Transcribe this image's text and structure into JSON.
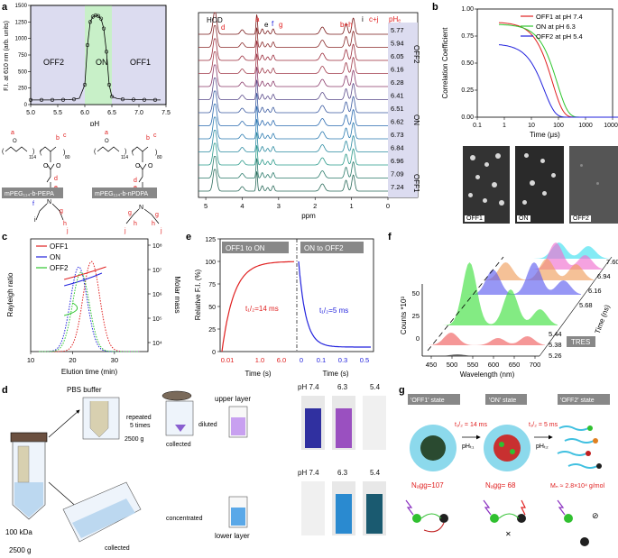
{
  "panels": {
    "a": "a",
    "b": "b",
    "c": "c",
    "d": "d",
    "e": "e",
    "f": "f",
    "g": "g"
  },
  "colors": {
    "red": "#e02020",
    "green": "#2ec62e",
    "blue": "#2222dd",
    "accentBg": "#dcdcf0",
    "onBand": "#c8f0c8"
  },
  "chart_data": [
    {
      "id": "a-fi",
      "type": "line",
      "xlabel": "pH",
      "ylabel": "F.I. at 610 nm (arb. units)",
      "xlim": [
        5.0,
        7.5
      ],
      "ylim": [
        0,
        1500
      ],
      "xticks": [
        "5.0",
        "5.5",
        "6.0",
        "6.5",
        "7.0",
        "7.5"
      ],
      "yticks": [
        "0",
        "250",
        "500",
        "750",
        "1000",
        "1250",
        "1500"
      ],
      "regions": [
        "OFF2",
        "ON",
        "OFF1"
      ],
      "x": [
        5.0,
        5.1,
        5.2,
        5.3,
        5.4,
        5.5,
        5.6,
        5.7,
        5.8,
        5.9,
        6.0,
        6.05,
        6.1,
        6.15,
        6.2,
        6.25,
        6.3,
        6.35,
        6.4,
        6.45,
        6.5,
        6.6,
        6.7,
        6.8,
        6.9,
        7.0,
        7.1,
        7.2,
        7.3,
        7.4
      ],
      "y": [
        70,
        70,
        70,
        70,
        70,
        72,
        72,
        75,
        80,
        95,
        300,
        900,
        1250,
        1330,
        1350,
        1340,
        1300,
        1150,
        800,
        300,
        120,
        90,
        80,
        78,
        75,
        75,
        72,
        72,
        70,
        70
      ]
    },
    {
      "id": "a-nmr",
      "type": "line",
      "xlabel": "ppm",
      "xticks": [
        "5",
        "4",
        "3",
        "2",
        "1",
        "0"
      ],
      "peak_labels": [
        "HOD",
        "d",
        "a",
        "e",
        "f",
        "g",
        "b+h",
        "i",
        "c+j"
      ],
      "ph_header": "pHₑ",
      "ph_values": [
        "5.77",
        "5.94",
        "6.05",
        "6.16",
        "6.28",
        "6.41",
        "6.51",
        "6.62",
        "6.73",
        "6.84",
        "6.96",
        "7.09",
        "7.24"
      ],
      "state_labels": [
        "OFF2",
        "ON",
        "OFF1"
      ]
    },
    {
      "id": "b",
      "type": "line",
      "xlabel": "Time (μs)",
      "ylabel": "Correlation Coefficient",
      "xticks": [
        "0.1",
        "1",
        "10",
        "100",
        "1000",
        "10000"
      ],
      "yticks": [
        "0.00",
        "0.25",
        "0.50",
        "0.75",
        "1.00"
      ],
      "series": [
        {
          "name": "OFF1 at pH 7.4",
          "color": "#e02020",
          "plateau": 0.88,
          "tau": 60
        },
        {
          "name": "ON at pH 6.3",
          "color": "#2ec62e",
          "plateau": 0.86,
          "tau": 90
        },
        {
          "name": "OFF2 at pH 5.4",
          "color": "#2222dd",
          "plateau": 0.68,
          "tau": 30
        }
      ],
      "images": [
        "OFF1",
        "ON",
        "OFF2"
      ]
    },
    {
      "id": "c",
      "type": "line",
      "xlabel": "Elution time (min)",
      "ylabel": "Rayleigh ratio",
      "y2label": "Molar mass",
      "xticks": [
        "10",
        "20",
        "30"
      ],
      "y2ticks": [
        "10⁴",
        "10⁵",
        "10⁶",
        "10⁷",
        "10⁸"
      ],
      "series": [
        {
          "name": "OFF1",
          "color": "#e02020",
          "center": 24.5
        },
        {
          "name": "ON",
          "color": "#2222dd",
          "center": 21.5
        },
        {
          "name": "OFF2",
          "color": "#2ec62e",
          "center": 22.0
        }
      ]
    },
    {
      "id": "e",
      "type": "line",
      "ylabel": "Relative F.I. (%)",
      "yticks": [
        "0",
        "25",
        "50",
        "75",
        "100",
        "125"
      ],
      "left": {
        "title": "OFF1 to ON",
        "t12": "t₁/₂=14 ms",
        "xticks": [
          "0.01",
          "1.0",
          "6.0"
        ],
        "xlabel": "Time (s)"
      },
      "right": {
        "title": "ON to OFF2",
        "t12": "t₁/₂=5 ms",
        "xticks": [
          "0",
          "0.1",
          "0.3",
          "0.5"
        ],
        "xlabel": "Time (s)"
      }
    },
    {
      "id": "f",
      "type": "area",
      "xlabel": "Wavelength (nm)",
      "ylabel": "Counts *10³",
      "zlabel": "Time (ns)",
      "xticks": [
        "450",
        "500",
        "550",
        "600",
        "650",
        "700"
      ],
      "yticks": [
        "0",
        "25",
        "50"
      ],
      "ztick_left": [
        "5.26",
        "5.38",
        "5.44"
      ],
      "ztick_right": [
        "5.68",
        "6.16",
        "6.94",
        "7.60"
      ],
      "tag": "TRES"
    }
  ],
  "panel_a": {
    "polymer1": "mPEG₁₁₄-b-PEPA",
    "polymer2": "mPEG₁₁₄-b-nPDPA",
    "sub1": "114",
    "sub2": "80",
    "chem_letters": [
      "a",
      "b",
      "c",
      "d",
      "e",
      "f",
      "i",
      "j",
      "g",
      "h"
    ]
  },
  "panel_d": {
    "buffer": "PBS buffer",
    "repeated": "repeated\n5 times",
    "g1": "2500 g",
    "collected": "collected",
    "diluted": "diluted",
    "upper": "upper layer",
    "lower": "lower layer",
    "concentrated": "concentrated",
    "kda": "100 kDa",
    "g2": "2500 g",
    "ph_row1": [
      "pH 7.4",
      "6.3",
      "5.4"
    ],
    "ph_row2": [
      "pH 7.4",
      "6.3",
      "5.4"
    ]
  },
  "panel_g": {
    "states": [
      "'OFF1' state",
      "'ON' state",
      "'OFF2' state"
    ],
    "t1": "t₁/₂ = 14 ms",
    "t2": "t₁/₂ = 5 ms",
    "ph1": "pHₜ₁",
    "ph2": "pHₜ₂",
    "n1": "Nₐgg=107",
    "n2": "Nₐgg= 68",
    "mn": "Mₙ ≈ 2.8×10⁴ g/mol"
  }
}
